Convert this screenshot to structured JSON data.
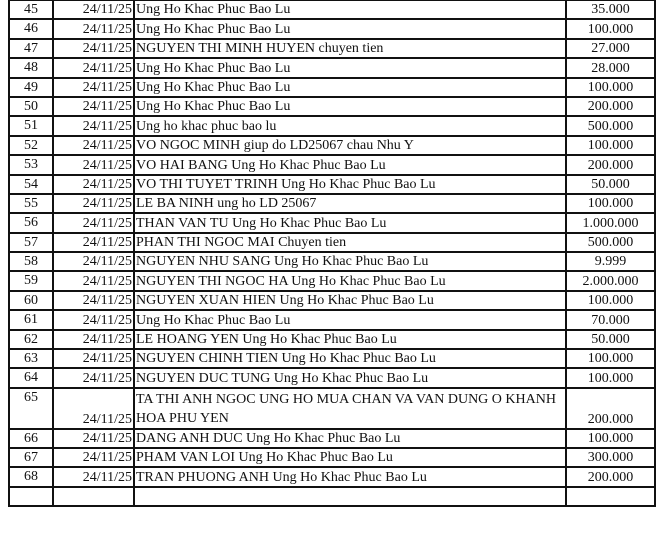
{
  "rows": [
    {
      "no": "45",
      "date": "24/11/25",
      "desc": " Ung Ho Khac Phuc Bao Lu",
      "amount": "35.000"
    },
    {
      "no": "46",
      "date": "24/11/25",
      "desc": " Ung Ho Khac Phuc Bao Lu",
      "amount": "100.000"
    },
    {
      "no": "47",
      "date": "24/11/25",
      "desc": "NGUYEN THI MINH HUYEN chuyen tien",
      "amount": "27.000"
    },
    {
      "no": "48",
      "date": "24/11/25",
      "desc": "Ung Ho Khac Phuc Bao Lu",
      "amount": "28.000"
    },
    {
      "no": "49",
      "date": "24/11/25",
      "desc": "Ung Ho Khac Phuc Bao Lu",
      "amount": "100.000"
    },
    {
      "no": "50",
      "date": "24/11/25",
      "desc": "Ung Ho Khac Phuc Bao Lu",
      "amount": "200.000"
    },
    {
      "no": "51",
      "date": "24/11/25",
      "desc": "Ung ho khac phuc bao lu",
      "amount": "500.000"
    },
    {
      "no": "52",
      "date": "24/11/25",
      "desc": "VO NGOC MINH giup do LD25067 chau Nhu Y",
      "amount": "100.000"
    },
    {
      "no": "53",
      "date": "24/11/25",
      "desc": "VO HAI BANG Ung Ho Khac Phuc Bao Lu",
      "amount": "200.000"
    },
    {
      "no": "54",
      "date": "24/11/25",
      "desc": "VO THI TUYET TRINH Ung Ho Khac Phuc Bao Lu",
      "amount": "50.000"
    },
    {
      "no": "55",
      "date": "24/11/25",
      "desc": "LE BA NINH ung ho LD 25067",
      "amount": "100.000"
    },
    {
      "no": "56",
      "date": "24/11/25",
      "desc": "THAN VAN TU  Ung Ho Khac Phuc Bao Lu",
      "amount": "1.000.000"
    },
    {
      "no": "57",
      "date": "24/11/25",
      "desc": "PHAN THI NGOC MAI Chuyen tien",
      "amount": "500.000"
    },
    {
      "no": "58",
      "date": "24/11/25",
      "desc": "NGUYEN NHU SANG Ung Ho Khac Phuc Bao Lu",
      "amount": "9.999"
    },
    {
      "no": "59",
      "date": "24/11/25",
      "desc": " NGUYEN THI NGOC HA Ung Ho Khac Phuc Bao Lu",
      "amount": "2.000.000"
    },
    {
      "no": "60",
      "date": "24/11/25",
      "desc": "NGUYEN XUAN HIEN Ung Ho Khac Phuc Bao Lu",
      "amount": "100.000"
    },
    {
      "no": "61",
      "date": "24/11/25",
      "desc": "Ung Ho Khac Phuc Bao Lu",
      "amount": "70.000"
    },
    {
      "no": "62",
      "date": "24/11/25",
      "desc": "LE HOANG YEN Ung Ho Khac Phuc Bao Lu",
      "amount": "50.000"
    },
    {
      "no": "63",
      "date": "24/11/25",
      "desc": "NGUYEN CHINH TIEN Ung Ho Khac Phuc Bao Lu",
      "amount": "100.000"
    },
    {
      "no": "64",
      "date": "24/11/25",
      "desc": "NGUYEN DUC TUNG Ung Ho Khac Phuc Bao Lu",
      "amount": "100.000"
    },
    {
      "no": "65",
      "date": "24/11/25",
      "desc": "TA THI ANH NGOC UNG HO MUA CHAN VA VAN DUNG O KHANH HOA PHU YEN",
      "amount": "200.000"
    },
    {
      "no": "66",
      "date": "24/11/25",
      "desc": "DANG ANH DUC  Ung Ho Khac Phuc Bao Lu",
      "amount": "100.000"
    },
    {
      "no": "67",
      "date": "24/11/25",
      "desc": "PHAM VAN LOI Ung Ho Khac Phuc Bao Lu",
      "amount": "300.000"
    },
    {
      "no": "68",
      "date": "24/11/25",
      "desc": "TRAN PHUONG ANH Ung Ho Khac Phuc Bao Lu",
      "amount": "200.000"
    }
  ]
}
